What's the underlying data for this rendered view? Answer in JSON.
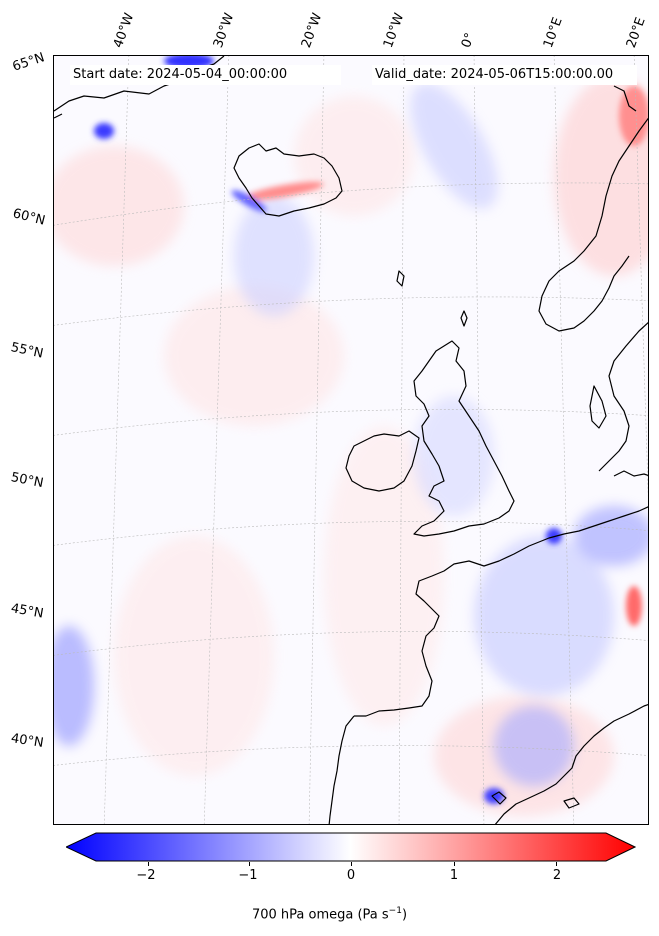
{
  "map": {
    "start_date": "Start date: 2024-05-04_00:00:00",
    "valid_date": "Valid_date: 2024-05-06T15:00:00.00",
    "lon_labels": [
      "40°W",
      "30°W",
      "20°W",
      "10°W",
      "0°",
      "10°E",
      "20°E"
    ],
    "lat_labels": [
      "65°N",
      "60°N",
      "55°N",
      "50°N",
      "45°N",
      "40°N"
    ],
    "field": "700 hPa omega",
    "projection": "Lambert conformal",
    "colormap": "bwr",
    "coastline_color": "#000000",
    "gridline_color": "#bbbbbb"
  },
  "colorbar": {
    "label_main": "700 hPa omega (Pa s",
    "label_exp": "−1",
    "label_end": ")",
    "ticks": [
      "−2",
      "−1",
      "0",
      "1",
      "2"
    ],
    "range": [
      -2.6,
      2.6
    ],
    "min_color": "#0000ff",
    "mid_color": "#ffffff",
    "max_color": "#ff0000",
    "extend": "both"
  }
}
